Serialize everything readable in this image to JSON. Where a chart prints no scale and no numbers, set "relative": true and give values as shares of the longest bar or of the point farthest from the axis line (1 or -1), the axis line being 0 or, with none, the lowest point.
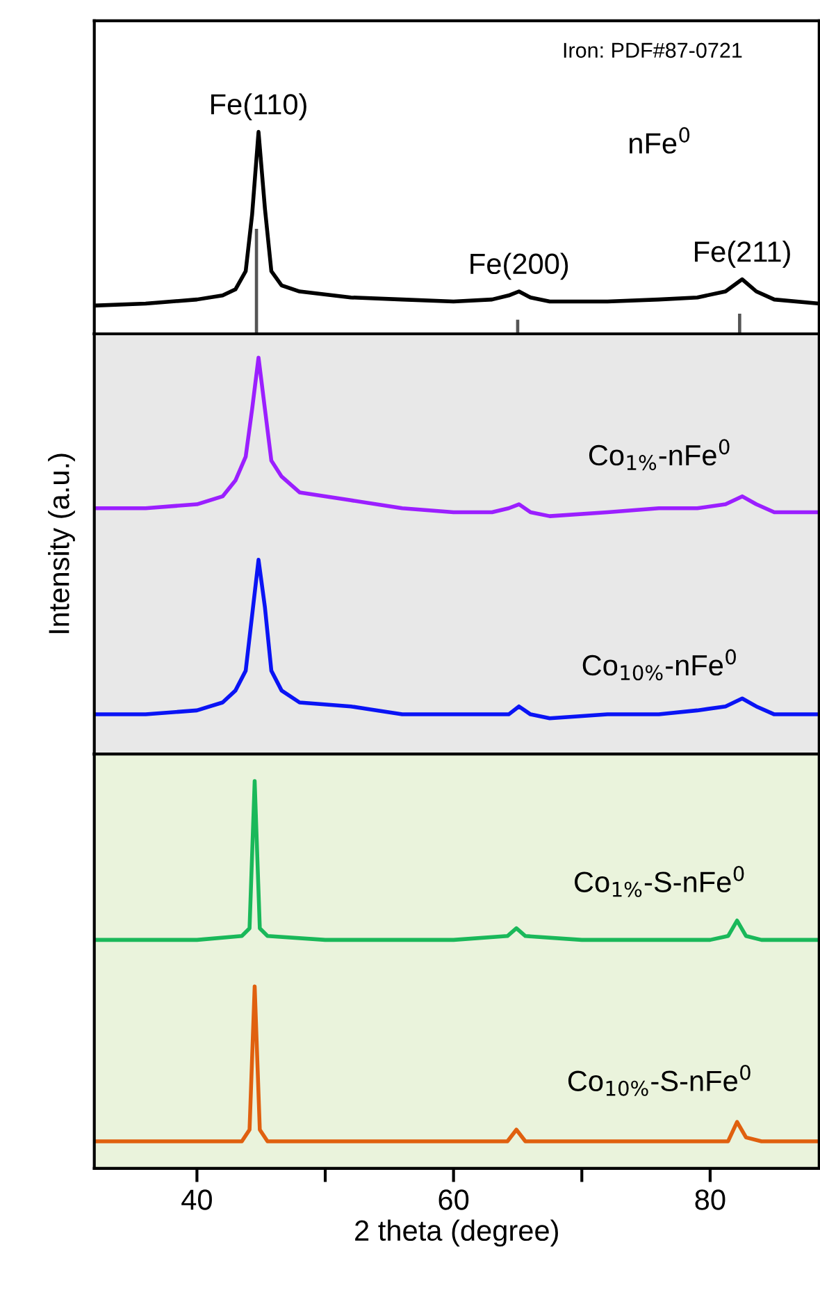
{
  "chart_data": [
    {
      "type": "line",
      "relative": true,
      "tick_labels": false,
      "xlim": [
        32,
        88.5
      ],
      "xticks": [
        40,
        60,
        80
      ],
      "marker": "none",
      "line_style": "solid",
      "grid": false,
      "legend": false,
      "series": [
        {
          "color": "#000000",
          "x": [
            32,
            36,
            40,
            42,
            43,
            43.8,
            44.3,
            44.8,
            45.3,
            45.8,
            46.6,
            48,
            52,
            56,
            60,
            63,
            64.3,
            65.1,
            66,
            67.5,
            72,
            76,
            79,
            81.2,
            82.5,
            83.6,
            85,
            88.5
          ],
          "values": [
            0.14,
            0.15,
            0.17,
            0.19,
            0.22,
            0.31,
            0.59,
            1,
            0.62,
            0.31,
            0.24,
            0.21,
            0.18,
            0.17,
            0.16,
            0.17,
            0.19,
            0.21,
            0.18,
            0.16,
            0.16,
            0.17,
            0.18,
            0.21,
            0.27,
            0.21,
            0.17,
            0.15
          ]
        },
        {
          "type": "bar",
          "color": "#555555",
          "x": [
            44.64,
            65.0,
            82.3
          ],
          "values": [
            0.52,
            0.07,
            0.1
          ]
        }
      ],
      "annotations": [
        "Iron: PDF#87-0721",
        "nFe$^{0}$",
        {
          "text": "Fe(110)",
          "x": 44.8,
          "y": 1
        },
        {
          "text": "Fe(200)",
          "x": 65.1,
          "y": 0.21
        },
        {
          "text": "Fe(211)",
          "x": 82.5,
          "y": 0.27
        }
      ]
    },
    {
      "type": "line",
      "relative": true,
      "tick_labels": false,
      "xlim": [
        32,
        88.5
      ],
      "xticks": [
        40,
        60,
        80
      ],
      "marker": "none",
      "line_style": "solid",
      "grid": false,
      "legend": false,
      "ylabel": "Intensity (a.u.)",
      "series": [
        {
          "name": "Co$_{1%}$-nFe$^{0}$",
          "color": "#9b1fff",
          "x": [
            32,
            36,
            40,
            42,
            43,
            43.8,
            44.3,
            44.8,
            45.3,
            45.8,
            46.6,
            48,
            52,
            56,
            60,
            63,
            64.3,
            65.1,
            66,
            67.5,
            72,
            76,
            79,
            81.2,
            82.5,
            83.6,
            85,
            88.5
          ],
          "values": [
            0.62,
            0.62,
            0.63,
            0.65,
            0.69,
            0.75,
            0.87,
            1,
            0.87,
            0.74,
            0.7,
            0.66,
            0.64,
            0.62,
            0.61,
            0.61,
            0.62,
            0.63,
            0.61,
            0.6,
            0.61,
            0.62,
            0.62,
            0.63,
            0.65,
            0.63,
            0.61,
            0.61
          ]
        },
        {
          "name": "Co$_{10%}$-nFe$^{0}$",
          "color": "#0a14f5",
          "x": [
            32,
            36,
            40,
            42,
            43,
            43.8,
            44.3,
            44.8,
            45.3,
            45.8,
            46.6,
            48,
            52,
            56,
            60,
            63,
            64.3,
            65.1,
            66,
            67.5,
            72,
            76,
            79,
            81.2,
            82.5,
            83.6,
            85,
            88.5
          ],
          "values": [
            0.1,
            0.1,
            0.11,
            0.13,
            0.16,
            0.21,
            0.35,
            0.49,
            0.37,
            0.21,
            0.16,
            0.13,
            0.12,
            0.1,
            0.1,
            0.1,
            0.1,
            0.12,
            0.1,
            0.09,
            0.1,
            0.1,
            0.11,
            0.12,
            0.14,
            0.12,
            0.1,
            0.1
          ]
        }
      ]
    },
    {
      "type": "line",
      "relative": true,
      "tick_labels": "x",
      "xlim": [
        32,
        88.5
      ],
      "xticks": [
        40,
        60,
        80
      ],
      "marker": "none",
      "line_style": "solid",
      "grid": false,
      "legend": false,
      "xlabel": "2 theta (degree)",
      "series": [
        {
          "name": "Co$_{1%}$-S-nFe$^{0}$",
          "color": "#1ab85a",
          "x": [
            32,
            40,
            43.5,
            44.1,
            44.5,
            44.9,
            45.5,
            50,
            60,
            64.2,
            64.9,
            65.6,
            70,
            80,
            81.4,
            82.1,
            82.8,
            84,
            88.5
          ],
          "values": [
            0.59,
            0.59,
            0.6,
            0.62,
            1,
            0.62,
            0.6,
            0.59,
            0.59,
            0.6,
            0.62,
            0.6,
            0.59,
            0.59,
            0.6,
            0.64,
            0.6,
            0.59,
            0.59
          ]
        },
        {
          "name": "Co$_{10%}$-S-nFe$^{0}$",
          "color": "#e0600f",
          "x": [
            32,
            40,
            43.5,
            44.1,
            44.5,
            44.9,
            45.5,
            50,
            60,
            64.2,
            64.9,
            65.6,
            70,
            80,
            81.4,
            82.1,
            82.8,
            84,
            88.5
          ],
          "values": [
            0.07,
            0.07,
            0.07,
            0.1,
            0.47,
            0.1,
            0.07,
            0.07,
            0.07,
            0.07,
            0.1,
            0.07,
            0.07,
            0.07,
            0.07,
            0.12,
            0.08,
            0.07,
            0.07
          ]
        }
      ]
    }
  ]
}
